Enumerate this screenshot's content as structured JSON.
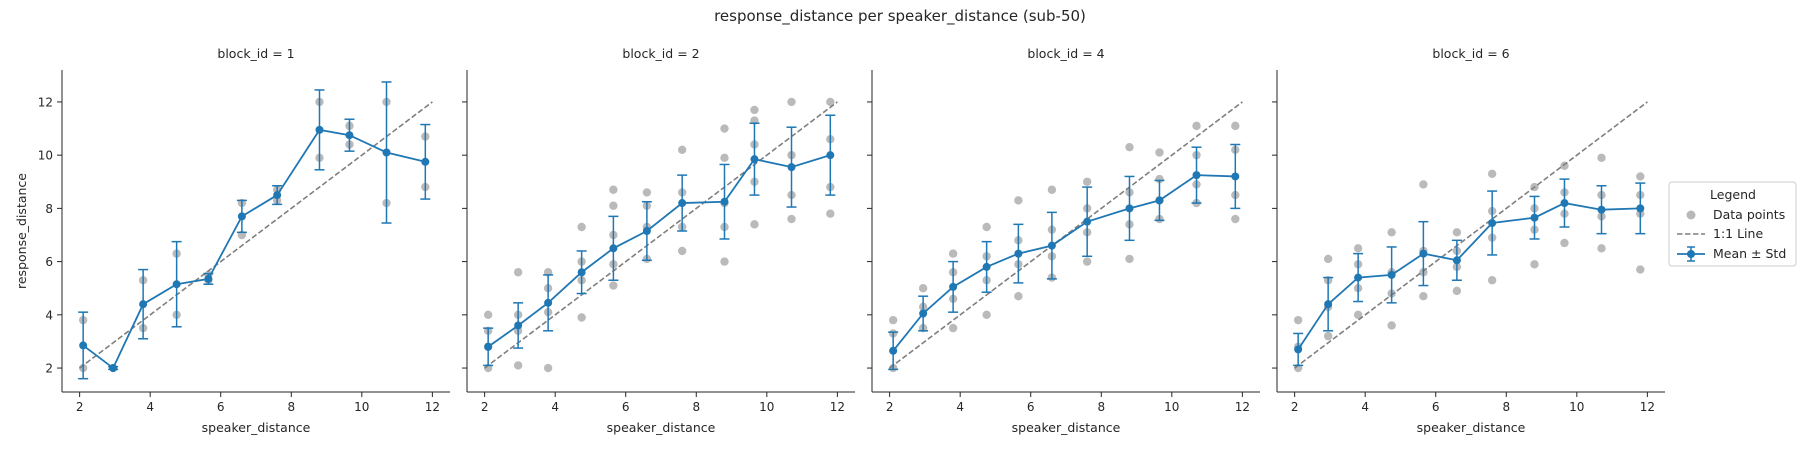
{
  "figure": {
    "suptitle": "response_distance per speaker_distance (sub-50)",
    "legend": {
      "title": "Legend",
      "entries": [
        "Data points",
        "1:1 Line",
        "Mean ± Std"
      ],
      "placement": "right"
    },
    "colors": {
      "mean": "#1f77b4",
      "points": "#a0a0a0",
      "identity": "#7f7f7f",
      "axis": "#262626"
    }
  },
  "chart_data": [
    {
      "type": "scatter",
      "title": "block_id = 1",
      "xlabel": "speaker_distance",
      "ylabel": "response_distance",
      "xlim": [
        1.5,
        12.5
      ],
      "ylim": [
        1.1,
        13.2
      ],
      "xticks": [
        2,
        4,
        6,
        8,
        10,
        12
      ],
      "yticks": [
        2,
        4,
        6,
        8,
        10,
        12
      ],
      "grid": false,
      "identity_line": [
        [
          2,
          2
        ],
        [
          12,
          12
        ]
      ],
      "mean_std": {
        "x": [
          2.1,
          2.95,
          3.8,
          4.75,
          5.65,
          6.6,
          7.6,
          8.8,
          9.65,
          10.7,
          11.8
        ],
        "mean": [
          2.85,
          2.0,
          4.4,
          5.15,
          5.35,
          7.7,
          8.5,
          10.95,
          10.75,
          10.1,
          9.75
        ],
        "std": [
          1.25,
          0.05,
          1.3,
          1.6,
          0.2,
          0.6,
          0.35,
          1.5,
          0.6,
          2.65,
          1.4
        ]
      },
      "points": [
        [
          2.1,
          2.0
        ],
        [
          2.1,
          3.8
        ],
        [
          2.95,
          2.0
        ],
        [
          3.8,
          3.5
        ],
        [
          3.8,
          5.3
        ],
        [
          4.75,
          4.0
        ],
        [
          4.75,
          6.3
        ],
        [
          5.65,
          5.3
        ],
        [
          5.65,
          5.5
        ],
        [
          6.6,
          7.0
        ],
        [
          6.6,
          8.2
        ],
        [
          7.6,
          8.3
        ],
        [
          7.6,
          8.7
        ],
        [
          8.8,
          9.9
        ],
        [
          8.8,
          12.0
        ],
        [
          9.65,
          10.4
        ],
        [
          9.65,
          11.1
        ],
        [
          10.7,
          8.2
        ],
        [
          10.7,
          12.0
        ],
        [
          11.8,
          8.8
        ],
        [
          11.8,
          10.7
        ]
      ]
    },
    {
      "type": "scatter",
      "title": "block_id = 2",
      "xlabel": "speaker_distance",
      "xlim": [
        1.5,
        12.5
      ],
      "ylim": [
        1.1,
        13.2
      ],
      "xticks": [
        2,
        4,
        6,
        8,
        10,
        12
      ],
      "yticks": [
        2,
        4,
        6,
        8,
        10,
        12
      ],
      "grid": false,
      "identity_line": [
        [
          2,
          2
        ],
        [
          12,
          12
        ]
      ],
      "mean_std": {
        "x": [
          2.1,
          2.95,
          3.8,
          4.75,
          5.65,
          6.6,
          7.6,
          8.8,
          9.65,
          10.7,
          11.8
        ],
        "mean": [
          2.8,
          3.6,
          4.45,
          5.6,
          6.5,
          7.15,
          8.2,
          8.25,
          9.85,
          9.55,
          10.0
        ],
        "std": [
          0.7,
          0.85,
          1.05,
          0.8,
          1.2,
          1.1,
          1.05,
          1.4,
          1.35,
          1.5,
          1.5
        ]
      },
      "points": [
        [
          2.1,
          2.0
        ],
        [
          2.1,
          2.8
        ],
        [
          2.1,
          3.4
        ],
        [
          2.1,
          4.0
        ],
        [
          2.95,
          2.1
        ],
        [
          2.95,
          3.4
        ],
        [
          2.95,
          4.0
        ],
        [
          2.95,
          5.6
        ],
        [
          3.8,
          2.0
        ],
        [
          3.8,
          4.1
        ],
        [
          3.8,
          5.0
        ],
        [
          3.8,
          5.6
        ],
        [
          4.75,
          3.9
        ],
        [
          4.75,
          5.3
        ],
        [
          4.75,
          6.0
        ],
        [
          4.75,
          7.3
        ],
        [
          5.65,
          5.1
        ],
        [
          5.65,
          5.9
        ],
        [
          5.65,
          7.0
        ],
        [
          5.65,
          8.1
        ],
        [
          5.65,
          8.7
        ],
        [
          6.6,
          6.1
        ],
        [
          6.6,
          7.3
        ],
        [
          6.6,
          8.1
        ],
        [
          6.6,
          8.6
        ],
        [
          7.6,
          6.4
        ],
        [
          7.6,
          7.3
        ],
        [
          7.6,
          8.6
        ],
        [
          7.6,
          10.2
        ],
        [
          8.8,
          6.0
        ],
        [
          8.8,
          7.3
        ],
        [
          8.8,
          8.2
        ],
        [
          8.8,
          9.9
        ],
        [
          8.8,
          11.0
        ],
        [
          9.65,
          7.4
        ],
        [
          9.65,
          9.0
        ],
        [
          9.65,
          10.4
        ],
        [
          9.65,
          11.3
        ],
        [
          9.65,
          11.7
        ],
        [
          10.7,
          7.6
        ],
        [
          10.7,
          8.5
        ],
        [
          10.7,
          10.0
        ],
        [
          10.7,
          12.0
        ],
        [
          11.8,
          7.8
        ],
        [
          11.8,
          8.8
        ],
        [
          11.8,
          10.6
        ],
        [
          11.8,
          12.0
        ]
      ]
    },
    {
      "type": "scatter",
      "title": "block_id = 4",
      "xlabel": "speaker_distance",
      "xlim": [
        1.5,
        12.5
      ],
      "ylim": [
        1.1,
        13.2
      ],
      "xticks": [
        2,
        4,
        6,
        8,
        10,
        12
      ],
      "yticks": [
        2,
        4,
        6,
        8,
        10,
        12
      ],
      "grid": false,
      "identity_line": [
        [
          2,
          2
        ],
        [
          12,
          12
        ]
      ],
      "mean_std": {
        "x": [
          2.1,
          2.95,
          3.8,
          4.75,
          5.65,
          6.6,
          7.6,
          8.8,
          9.65,
          10.7,
          11.8
        ],
        "mean": [
          2.65,
          4.05,
          5.05,
          5.8,
          6.3,
          6.6,
          7.5,
          8.0,
          8.3,
          9.25,
          9.2
        ],
        "std": [
          0.7,
          0.65,
          0.95,
          0.95,
          1.1,
          1.25,
          1.3,
          1.2,
          0.75,
          1.05,
          1.2
        ]
      },
      "points": [
        [
          2.1,
          2.0
        ],
        [
          2.1,
          3.3
        ],
        [
          2.1,
          3.8
        ],
        [
          2.95,
          3.5
        ],
        [
          2.95,
          4.3
        ],
        [
          2.95,
          5.0
        ],
        [
          3.8,
          3.5
        ],
        [
          3.8,
          4.6
        ],
        [
          3.8,
          5.6
        ],
        [
          3.8,
          6.3
        ],
        [
          4.75,
          4.0
        ],
        [
          4.75,
          5.3
        ],
        [
          4.75,
          6.2
        ],
        [
          4.75,
          7.3
        ],
        [
          5.65,
          4.7
        ],
        [
          5.65,
          5.9
        ],
        [
          5.65,
          6.8
        ],
        [
          5.65,
          8.3
        ],
        [
          6.6,
          5.4
        ],
        [
          6.6,
          6.2
        ],
        [
          6.6,
          7.2
        ],
        [
          6.6,
          8.7
        ],
        [
          7.6,
          6.0
        ],
        [
          7.6,
          7.1
        ],
        [
          7.6,
          8.0
        ],
        [
          7.6,
          9.0
        ],
        [
          8.8,
          6.1
        ],
        [
          8.8,
          7.4
        ],
        [
          8.8,
          8.6
        ],
        [
          8.8,
          10.3
        ],
        [
          9.65,
          7.6
        ],
        [
          9.65,
          8.3
        ],
        [
          9.65,
          9.1
        ],
        [
          9.65,
          10.1
        ],
        [
          10.7,
          8.2
        ],
        [
          10.7,
          8.9
        ],
        [
          10.7,
          10.0
        ],
        [
          10.7,
          11.1
        ],
        [
          11.8,
          7.6
        ],
        [
          11.8,
          8.5
        ],
        [
          11.8,
          10.2
        ],
        [
          11.8,
          11.1
        ]
      ]
    },
    {
      "type": "scatter",
      "title": "block_id = 6",
      "xlabel": "speaker_distance",
      "xlim": [
        1.5,
        12.5
      ],
      "ylim": [
        1.1,
        13.2
      ],
      "xticks": [
        2,
        4,
        6,
        8,
        10,
        12
      ],
      "yticks": [
        2,
        4,
        6,
        8,
        10,
        12
      ],
      "grid": false,
      "identity_line": [
        [
          2,
          2
        ],
        [
          12,
          12
        ]
      ],
      "mean_std": {
        "x": [
          2.1,
          2.95,
          3.8,
          4.75,
          5.65,
          6.6,
          7.6,
          8.8,
          9.65,
          10.7,
          11.8
        ],
        "mean": [
          2.7,
          4.4,
          5.4,
          5.5,
          6.3,
          6.05,
          7.45,
          7.65,
          8.2,
          7.95,
          8.0
        ],
        "std": [
          0.6,
          1.0,
          0.9,
          1.05,
          1.2,
          0.75,
          1.2,
          0.8,
          0.9,
          0.9,
          0.95
        ]
      },
      "points": [
        [
          2.1,
          2.0
        ],
        [
          2.1,
          2.8
        ],
        [
          2.1,
          3.8
        ],
        [
          2.95,
          3.2
        ],
        [
          2.95,
          4.3
        ],
        [
          2.95,
          5.3
        ],
        [
          2.95,
          6.1
        ],
        [
          3.8,
          4.0
        ],
        [
          3.8,
          5.0
        ],
        [
          3.8,
          5.9
        ],
        [
          3.8,
          6.5
        ],
        [
          4.75,
          3.6
        ],
        [
          4.75,
          4.8
        ],
        [
          4.75,
          5.6
        ],
        [
          4.75,
          7.1
        ],
        [
          5.65,
          4.7
        ],
        [
          5.65,
          5.6
        ],
        [
          5.65,
          6.4
        ],
        [
          5.65,
          8.9
        ],
        [
          6.6,
          4.9
        ],
        [
          6.6,
          5.8
        ],
        [
          6.6,
          6.4
        ],
        [
          6.6,
          7.1
        ],
        [
          7.6,
          5.3
        ],
        [
          7.6,
          6.9
        ],
        [
          7.6,
          7.9
        ],
        [
          7.6,
          9.3
        ],
        [
          8.8,
          5.9
        ],
        [
          8.8,
          7.2
        ],
        [
          8.8,
          8.0
        ],
        [
          8.8,
          8.8
        ],
        [
          9.65,
          6.7
        ],
        [
          9.65,
          7.8
        ],
        [
          9.65,
          8.6
        ],
        [
          9.65,
          9.6
        ],
        [
          10.7,
          6.5
        ],
        [
          10.7,
          7.7
        ],
        [
          10.7,
          8.5
        ],
        [
          10.7,
          9.9
        ],
        [
          11.8,
          5.7
        ],
        [
          11.8,
          7.8
        ],
        [
          11.8,
          8.5
        ],
        [
          11.8,
          9.2
        ]
      ]
    }
  ]
}
